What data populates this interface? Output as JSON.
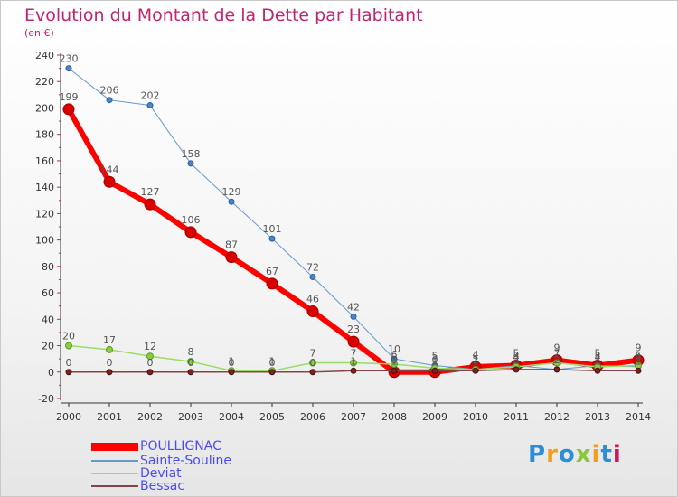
{
  "page": {
    "title": "Evolution du Montant de la Dette par Habitant",
    "unit": "(en €)",
    "brand": "Proxiti"
  },
  "colors": {
    "title": "#c0246e",
    "legend_text": "#4a4aff",
    "POULLIGNAC": "#ff0000",
    "Sainte-Souline": "#6699cc",
    "Deviat": "#99dd66",
    "Bessac": "#884444"
  },
  "chart_data": {
    "type": "line",
    "title": "Evolution du Montant de la Dette par Habitant",
    "ylabel": "(en €)",
    "xlabel": "",
    "x": [
      "2000",
      "2001",
      "2002",
      "2003",
      "2004",
      "2005",
      "2006",
      "2007",
      "2008",
      "2009",
      "2010",
      "2011",
      "2012",
      "2013",
      "2014"
    ],
    "ylim": [
      -20,
      240
    ],
    "ytick_step": 20,
    "grid": false,
    "legend_position": "bottom-left",
    "series": [
      {
        "name": "POULLIGNAC",
        "values": [
          199,
          144,
          127,
          106,
          87,
          67,
          46,
          23,
          0,
          0,
          4,
          5,
          9,
          5,
          9
        ]
      },
      {
        "name": "Sainte-Souline",
        "values": [
          230,
          206,
          202,
          158,
          129,
          101,
          72,
          42,
          10,
          5,
          2,
          5,
          2,
          5,
          4
        ]
      },
      {
        "name": "Deviat",
        "values": [
          20,
          17,
          12,
          8,
          1,
          1,
          7,
          7,
          6,
          3,
          2,
          4,
          7,
          4,
          5
        ]
      },
      {
        "name": "Bessac",
        "values": [
          0,
          0,
          0,
          0,
          0,
          0,
          0,
          1,
          1,
          1,
          1,
          2,
          2,
          1,
          1
        ]
      }
    ]
  }
}
